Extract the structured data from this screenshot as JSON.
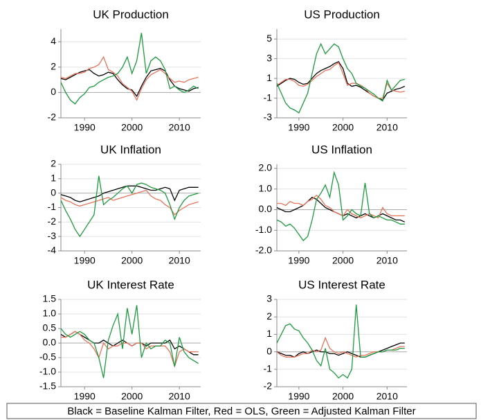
{
  "caption": "Black = Baseline Kalman Filter, Red = OLS, Green = Adjusted Kalman Filter",
  "chart_data": [
    {
      "type": "line",
      "title": "UK Production",
      "xlim": [
        1985,
        2014.5
      ],
      "xticks": [
        1990,
        2000,
        2010
      ],
      "ylim": [
        -2,
        5
      ],
      "yticks": [
        -2,
        0,
        2,
        4
      ],
      "grid": true,
      "x": [
        1985,
        1986,
        1987,
        1988,
        1989,
        1990,
        1991,
        1992,
        1993,
        1994,
        1995,
        1996,
        1997,
        1998,
        1999,
        2000,
        2001,
        2002,
        2003,
        2004,
        2005,
        2006,
        2007,
        2008,
        2009,
        2010,
        2011,
        2012,
        2013,
        2014
      ],
      "series": [
        {
          "color": "#000000",
          "values": [
            1.1,
            1.0,
            1.2,
            1.4,
            1.6,
            1.7,
            1.8,
            1.5,
            1.3,
            1.4,
            1.6,
            1.5,
            1.0,
            0.6,
            0.3,
            0.2,
            -0.3,
            0.5,
            1.2,
            1.7,
            1.8,
            1.9,
            1.7,
            1.0,
            0.5,
            0.3,
            0.2,
            0.1,
            0.3,
            0.4
          ]
        },
        {
          "color": "#e8735a",
          "values": [
            1.2,
            1.1,
            1.3,
            1.5,
            1.5,
            1.6,
            1.9,
            2.0,
            2.2,
            2.8,
            1.8,
            1.6,
            1.3,
            0.7,
            0.4,
            0.1,
            -0.6,
            0.3,
            1.0,
            1.4,
            1.6,
            1.8,
            1.5,
            1.1,
            0.8,
            0.9,
            0.8,
            1.0,
            1.1,
            1.2
          ]
        },
        {
          "color": "#1a9a3c",
          "values": [
            0.8,
            0.0,
            -0.6,
            -0.9,
            -0.4,
            -0.1,
            0.4,
            0.5,
            0.8,
            1.0,
            1.2,
            1.3,
            1.5,
            2.0,
            2.8,
            1.5,
            2.5,
            4.7,
            1.5,
            2.5,
            2.8,
            2.5,
            1.8,
            0.3,
            0.5,
            0.2,
            0.0,
            0.2,
            0.5,
            0.3
          ]
        }
      ]
    },
    {
      "type": "line",
      "title": "US Production",
      "xlim": [
        1985,
        2014.5
      ],
      "xticks": [
        1990,
        2000,
        2010
      ],
      "ylim": [
        -3,
        6
      ],
      "yticks": [
        -3,
        -1,
        1,
        3,
        5
      ],
      "grid": true,
      "x": [
        1985,
        1986,
        1987,
        1988,
        1989,
        1990,
        1991,
        1992,
        1993,
        1994,
        1995,
        1996,
        1997,
        1998,
        1999,
        2000,
        2001,
        2002,
        2003,
        2004,
        2005,
        2006,
        2007,
        2008,
        2009,
        2010,
        2011,
        2012,
        2013,
        2014
      ],
      "series": [
        {
          "color": "#000000",
          "values": [
            0.2,
            0.5,
            0.8,
            1.0,
            0.9,
            0.6,
            0.4,
            0.5,
            1.0,
            1.5,
            1.8,
            2.0,
            2.2,
            2.5,
            2.7,
            2.0,
            0.5,
            0.2,
            0.3,
            0.1,
            -0.2,
            -0.5,
            -0.8,
            -1.0,
            -1.2,
            -0.5,
            -0.3,
            -0.1,
            0.0,
            0.2
          ]
        },
        {
          "color": "#e8735a",
          "values": [
            0.3,
            0.6,
            0.9,
            0.9,
            0.7,
            0.3,
            0.2,
            0.4,
            0.8,
            1.2,
            1.5,
            1.8,
            1.9,
            2.3,
            2.6,
            1.5,
            0.3,
            0.5,
            0.5,
            0.3,
            0.0,
            -0.5,
            -0.8,
            -1.0,
            -1.0,
            0.5,
            -0.2,
            -0.3,
            -0.4,
            -0.3
          ]
        },
        {
          "color": "#1a9a3c",
          "values": [
            0.5,
            -0.5,
            -1.5,
            -2.0,
            -2.2,
            -2.5,
            -1.5,
            -0.5,
            1.5,
            3.5,
            4.5,
            3.5,
            4.0,
            4.5,
            4.2,
            3.0,
            2.0,
            1.5,
            0.5,
            0.2,
            0.0,
            -0.3,
            -0.6,
            -1.0,
            -1.3,
            0.8,
            -0.2,
            0.3,
            0.8,
            0.9
          ]
        }
      ]
    },
    {
      "type": "line",
      "title": "UK Inflation",
      "xlim": [
        1985,
        2014.5
      ],
      "xticks": [
        1990,
        2000,
        2010
      ],
      "ylim": [
        -4,
        2
      ],
      "yticks": [
        -4,
        -3,
        -2,
        -1,
        0,
        1,
        2
      ],
      "grid": true,
      "x": [
        1985,
        1986,
        1987,
        1988,
        1989,
        1990,
        1991,
        1992,
        1993,
        1994,
        1995,
        1996,
        1997,
        1998,
        1999,
        2000,
        2001,
        2002,
        2003,
        2004,
        2005,
        2006,
        2007,
        2008,
        2009,
        2010,
        2011,
        2012,
        2013,
        2014
      ],
      "series": [
        {
          "color": "#000000",
          "values": [
            -0.1,
            -0.2,
            -0.3,
            -0.5,
            -0.6,
            -0.5,
            -0.4,
            -0.3,
            -0.2,
            0.0,
            0.1,
            0.2,
            0.3,
            0.4,
            0.5,
            0.5,
            0.5,
            0.4,
            0.3,
            0.2,
            0.2,
            0.3,
            0.4,
            0.3,
            -0.5,
            0.2,
            0.3,
            0.4,
            0.4,
            0.4
          ]
        },
        {
          "color": "#e8735a",
          "values": [
            -0.3,
            -0.5,
            -0.6,
            -0.8,
            -0.9,
            -0.8,
            -0.7,
            -0.6,
            -0.5,
            -0.4,
            -0.3,
            -0.5,
            -0.4,
            -0.3,
            -0.2,
            -0.1,
            0.0,
            0.1,
            0.2,
            -0.2,
            -0.4,
            -0.5,
            -0.8,
            -1.0,
            -1.5,
            -1.2,
            -1.0,
            -0.8,
            -0.7,
            -0.6
          ]
        },
        {
          "color": "#1a9a3c",
          "values": [
            -0.5,
            -1.2,
            -1.8,
            -2.5,
            -3.0,
            -2.5,
            -2.0,
            -1.5,
            1.2,
            -0.8,
            -0.5,
            -0.3,
            0.0,
            0.3,
            0.5,
            0.0,
            0.6,
            0.7,
            0.6,
            0.4,
            0.3,
            0.2,
            0.0,
            -0.8,
            -1.8,
            -1.0,
            -0.5,
            -0.2,
            -0.1,
            0.0
          ]
        }
      ]
    },
    {
      "type": "line",
      "title": "US Inflation",
      "xlim": [
        1985,
        2014.5
      ],
      "xticks": [
        1990,
        2000,
        2010
      ],
      "ylim": [
        -2,
        2.2
      ],
      "yticks": [
        {
          "value": -2,
          "label": "-2.0"
        },
        {
          "value": -1,
          "label": "-1.0"
        },
        {
          "value": 0,
          "label": "0.0"
        },
        {
          "value": 1,
          "label": "1.0"
        },
        {
          "value": 2,
          "label": "2.0"
        }
      ],
      "grid": true,
      "x": [
        1985,
        1986,
        1987,
        1988,
        1989,
        1990,
        1991,
        1992,
        1993,
        1994,
        1995,
        1996,
        1997,
        1998,
        1999,
        2000,
        2001,
        2002,
        2003,
        2004,
        2005,
        2006,
        2007,
        2008,
        2009,
        2010,
        2011,
        2012,
        2013,
        2014
      ],
      "series": [
        {
          "color": "#000000",
          "values": [
            0.1,
            0.0,
            -0.1,
            -0.1,
            0.0,
            0.1,
            0.2,
            0.4,
            0.6,
            0.5,
            0.3,
            0.1,
            0.0,
            -0.1,
            -0.2,
            -0.3,
            -0.2,
            -0.3,
            -0.4,
            -0.3,
            -0.2,
            -0.3,
            -0.4,
            -0.3,
            -0.2,
            -0.3,
            -0.4,
            -0.5,
            -0.5,
            -0.6
          ]
        },
        {
          "color": "#e8735a",
          "values": [
            0.3,
            0.3,
            0.2,
            0.4,
            0.3,
            0.3,
            0.2,
            0.4,
            0.5,
            0.7,
            0.5,
            0.2,
            0.1,
            -0.1,
            -0.2,
            -0.3,
            0.0,
            -0.2,
            -0.3,
            -0.4,
            -0.3,
            -0.2,
            -0.3,
            -0.4,
            0.1,
            -0.2,
            -0.3,
            -0.3,
            -0.3,
            -0.3
          ]
        },
        {
          "color": "#1a9a3c",
          "values": [
            -0.5,
            -0.6,
            -0.8,
            -0.7,
            -0.9,
            -1.2,
            -1.5,
            -1.3,
            -0.5,
            0.5,
            0.8,
            1.2,
            0.6,
            1.8,
            1.2,
            -0.5,
            -0.3,
            0.0,
            -0.2,
            -0.3,
            1.3,
            -0.2,
            -0.4,
            -0.3,
            -0.4,
            -0.5,
            -0.5,
            -0.6,
            -0.7,
            -0.7
          ]
        }
      ]
    },
    {
      "type": "line",
      "title": "UK Interest Rate",
      "xlim": [
        1985,
        2014.5
      ],
      "xticks": [
        1990,
        2000,
        2010
      ],
      "ylim": [
        -1.5,
        1.5
      ],
      "yticks": [
        -1.5,
        {
          "value": -1,
          "label": "-1.0"
        },
        -0.5,
        {
          "value": 0,
          "label": "0.0"
        },
        0.5,
        {
          "value": 1,
          "label": "1.0"
        },
        1.5
      ],
      "grid": true,
      "x": [
        1985,
        1986,
        1987,
        1988,
        1989,
        1990,
        1991,
        1992,
        1993,
        1994,
        1995,
        1996,
        1997,
        1998,
        1999,
        2000,
        2001,
        2002,
        2003,
        2004,
        2005,
        2006,
        2007,
        2008,
        2009,
        2010,
        2011,
        2012,
        2013,
        2014
      ],
      "series": [
        {
          "color": "#000000",
          "values": [
            0.3,
            0.2,
            0.3,
            0.4,
            0.3,
            0.2,
            0.1,
            0.0,
            0.0,
            0.1,
            0.0,
            -0.1,
            0.0,
            0.1,
            0.0,
            -0.1,
            0.0,
            0.0,
            -0.1,
            0.0,
            0.0,
            0.0,
            0.0,
            0.1,
            -0.2,
            -0.1,
            -0.2,
            -0.3,
            -0.4,
            -0.4
          ]
        },
        {
          "color": "#e8735a",
          "values": [
            0.2,
            0.2,
            0.3,
            0.4,
            0.3,
            0.1,
            0.0,
            -0.2,
            -0.5,
            0.0,
            -0.2,
            -0.1,
            -0.1,
            0.0,
            0.0,
            -0.1,
            0.0,
            0.0,
            -0.2,
            -0.1,
            -0.1,
            -0.1,
            -0.1,
            -0.3,
            -0.8,
            -0.3,
            -0.2,
            -0.3,
            -0.3,
            -0.3
          ]
        },
        {
          "color": "#1a9a3c",
          "values": [
            0.5,
            0.3,
            0.2,
            0.3,
            0.4,
            0.3,
            0.1,
            0.0,
            -0.5,
            -1.2,
            0.1,
            0.6,
            1.0,
            -0.2,
            1.2,
            0.3,
            1.3,
            -0.5,
            0.0,
            -0.2,
            -0.1,
            -0.1,
            0.1,
            0.0,
            -0.8,
            0.2,
            -0.3,
            -0.5,
            -0.6,
            -0.7
          ]
        }
      ]
    },
    {
      "type": "line",
      "title": "US Interest Rate",
      "xlim": [
        1985,
        2014.5
      ],
      "xticks": [
        1990,
        2000,
        2010
      ],
      "ylim": [
        -2,
        3
      ],
      "yticks": [
        -2,
        -1,
        0,
        1,
        2,
        3
      ],
      "grid": true,
      "x": [
        1985,
        1986,
        1987,
        1988,
        1989,
        1990,
        1991,
        1992,
        1993,
        1994,
        1995,
        1996,
        1997,
        1998,
        1999,
        2000,
        2001,
        2002,
        2003,
        2004,
        2005,
        2006,
        2007,
        2008,
        2009,
        2010,
        2011,
        2012,
        2013,
        2014
      ],
      "series": [
        {
          "color": "#000000",
          "values": [
            0.0,
            -0.1,
            -0.2,
            -0.2,
            -0.3,
            -0.1,
            0.0,
            -0.1,
            0.0,
            0.1,
            0.0,
            0.0,
            -0.1,
            -0.1,
            -0.2,
            -0.1,
            0.0,
            -0.1,
            -0.2,
            -0.3,
            -0.3,
            -0.2,
            -0.1,
            0.0,
            0.1,
            0.2,
            0.3,
            0.4,
            0.5,
            0.5
          ]
        },
        {
          "color": "#e8735a",
          "values": [
            0.0,
            -0.2,
            -0.3,
            -0.3,
            -0.3,
            -0.2,
            -0.1,
            -0.1,
            0.1,
            0.0,
            0.1,
            0.8,
            0.2,
            0.0,
            -0.1,
            0.0,
            -0.1,
            -0.2,
            -0.3,
            -0.2,
            -0.2,
            -0.1,
            0.0,
            0.0,
            0.0,
            0.1,
            0.1,
            0.2,
            0.3,
            0.3
          ]
        },
        {
          "color": "#1a9a3c",
          "values": [
            0.5,
            1.0,
            1.5,
            1.6,
            1.3,
            1.2,
            0.8,
            0.5,
            0.1,
            -0.5,
            -0.8,
            0.2,
            -1.0,
            -1.2,
            -1.5,
            -1.3,
            -1.5,
            -1.0,
            2.7,
            -0.3,
            -0.3,
            -0.2,
            -0.1,
            0.0,
            0.0,
            0.1,
            0.1,
            0.1,
            0.2,
            0.2
          ]
        }
      ]
    }
  ]
}
